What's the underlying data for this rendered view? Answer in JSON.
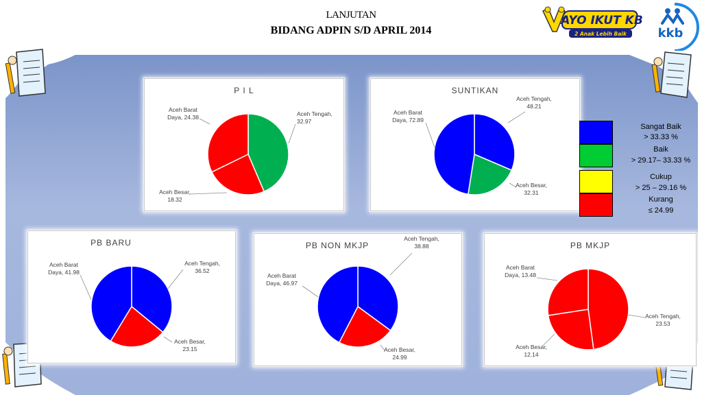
{
  "header": {
    "title_line1": "LANJUTAN",
    "title_line2": "BIDANG ADPIN S/D  APRIL 2014",
    "logo_ayo_text": "AYO IKUT KB",
    "logo_ayo_sub": "2 Anak Lebih Baik",
    "logo_kkb_text": "kkb"
  },
  "legend": {
    "items": [
      {
        "label": "Sangat Baik",
        "range": "> 33.33  %",
        "color": "#0000ff"
      },
      {
        "label": "Baik",
        "range": "> 29.17– 33.33 %",
        "color": "#00cc33"
      },
      {
        "label": "Cukup",
        "range": "> 25 – 29.16 %",
        "color": "#ffff00"
      },
      {
        "label": "Kurang",
        "range": "≤ 24.99",
        "color": "#ff0000"
      }
    ]
  },
  "chart_data": [
    {
      "type": "pie",
      "title": "P I L",
      "categories": [
        "Aceh Tengah",
        "Aceh Besar",
        "Aceh Barat Daya"
      ],
      "values": [
        32.97,
        18.32,
        24.38
      ],
      "colors": [
        "#00b050",
        "#ff0000",
        "#ff0000"
      ],
      "data_labels": [
        [
          "Aceh Tengah,",
          "32.97"
        ],
        [
          "Aceh Besar,",
          "18.32"
        ],
        [
          "Aceh Barat",
          "Daya, 24.38"
        ]
      ]
    },
    {
      "type": "pie",
      "title": "SUNTIKAN",
      "categories": [
        "Aceh Tengah",
        "Aceh Besar",
        "Aceh Barat Daya"
      ],
      "values": [
        48.21,
        32.31,
        72.89
      ],
      "colors": [
        "#0000ff",
        "#00b050",
        "#0000ff"
      ],
      "data_labels": [
        [
          "Aceh Tengah,",
          "48.21"
        ],
        [
          "Aceh Besar,",
          "32.31"
        ],
        [
          "Aceh Barat",
          "Daya, 72.89"
        ]
      ]
    },
    {
      "type": "pie",
      "title": "PB BARU",
      "categories": [
        "Aceh Tengah",
        "Aceh Besar",
        "Aceh Barat Daya"
      ],
      "values": [
        36.52,
        23.15,
        41.98
      ],
      "colors": [
        "#0000ff",
        "#ff0000",
        "#0000ff"
      ],
      "data_labels": [
        [
          "Aceh Tengah,",
          "36.52"
        ],
        [
          "Aceh Besar,",
          "23.15"
        ],
        [
          "Aceh Barat",
          "Daya, 41.98"
        ]
      ]
    },
    {
      "type": "pie",
      "title": "PB NON MKJP",
      "categories": [
        "Aceh Tengah",
        "Aceh Besar",
        "Aceh Barat Daya"
      ],
      "values": [
        38.88,
        24.99,
        46.97
      ],
      "colors": [
        "#0000ff",
        "#ff0000",
        "#0000ff"
      ],
      "data_labels": [
        [
          "Aceh Tengah,",
          "38.88"
        ],
        [
          "Aceh Besar,",
          "24.99"
        ],
        [
          "Aceh Barat",
          "Daya, 46.97"
        ]
      ]
    },
    {
      "type": "pie",
      "title": "PB  MKJP",
      "categories": [
        "Aceh Tengah",
        "Aceh Besar",
        "Aceh Barat Daya"
      ],
      "values": [
        23.53,
        12.14,
        13.48
      ],
      "colors": [
        "#ff0000",
        "#ff0000",
        "#ff0000"
      ],
      "data_labels": [
        [
          "Aceh Tengah,",
          "23.53"
        ],
        [
          "Aceh Besar,",
          "12.14"
        ],
        [
          "Aceh Barat",
          "Daya, 13.48"
        ]
      ]
    }
  ]
}
